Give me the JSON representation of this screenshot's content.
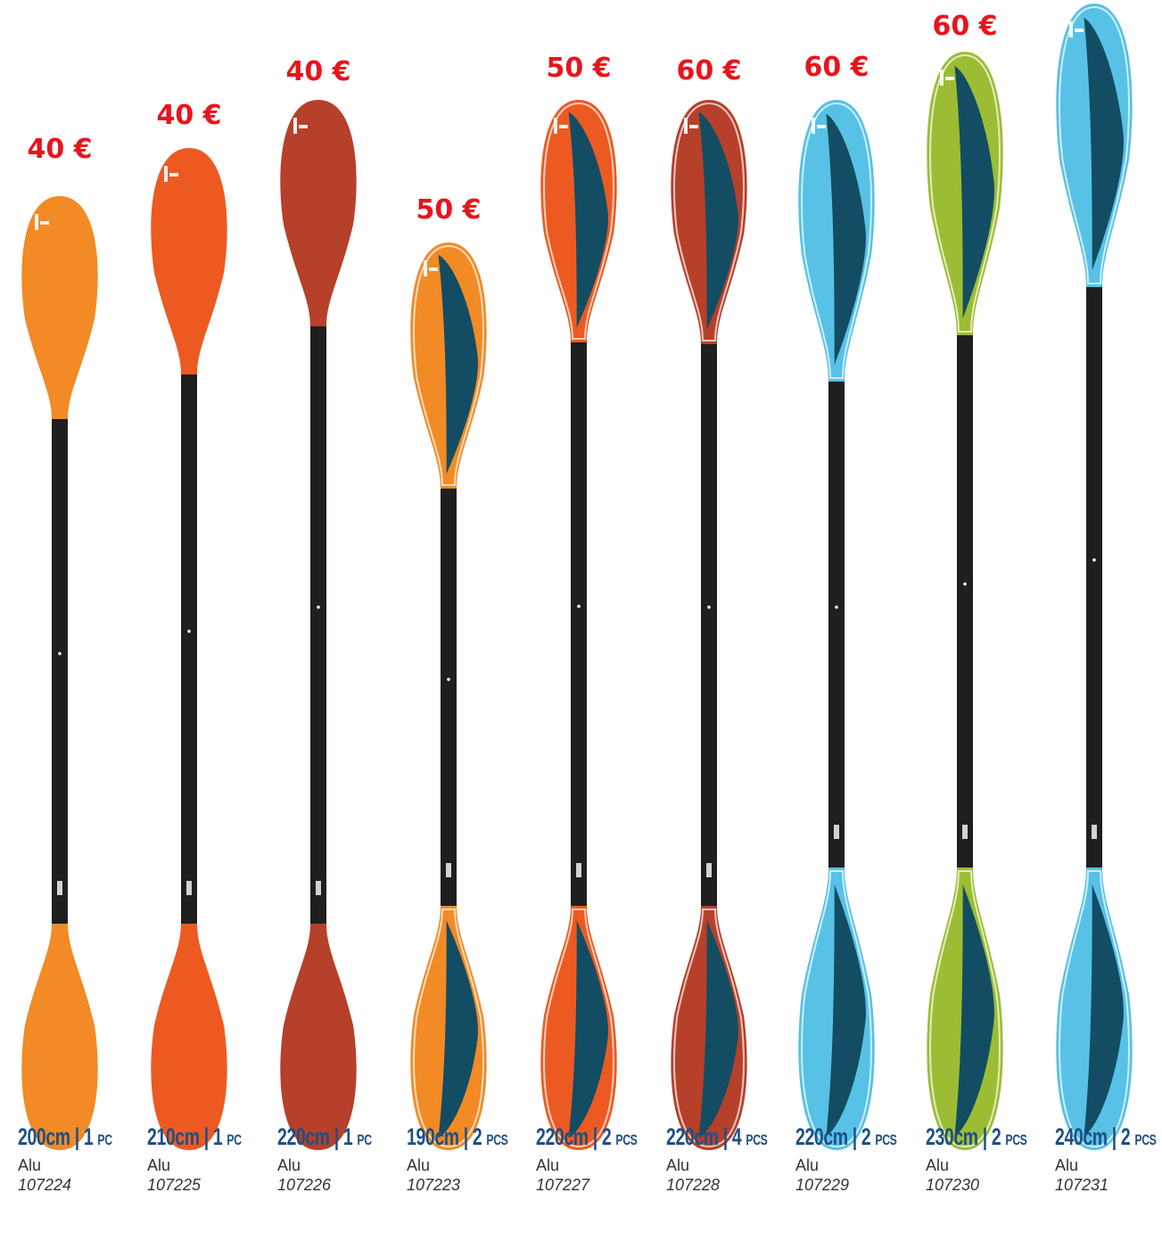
{
  "products": [
    {
      "price": "40 €",
      "length": "200cm",
      "pieces": "1 PC",
      "material": "Alu",
      "ref": "107224",
      "color": "#f28a25",
      "style": "solid",
      "accent": ""
    },
    {
      "price": "40 €",
      "length": "210cm",
      "pieces": "1 PC",
      "material": "Alu",
      "ref": "107225",
      "color": "#ec5a22",
      "style": "solid",
      "accent": ""
    },
    {
      "price": "40 €",
      "length": "220cm",
      "pieces": "1 PC",
      "material": "Alu",
      "ref": "107226",
      "color": "#b6402a",
      "style": "solid",
      "accent": ""
    },
    {
      "price": "50 €",
      "length": "190cm",
      "pieces": "2 PCS",
      "material": "Alu",
      "ref": "107223",
      "color": "#f28a25",
      "style": "insert",
      "accent": "#124d63"
    },
    {
      "price": "50 €",
      "length": "220cm",
      "pieces": "2 PCS",
      "material": "Alu",
      "ref": "107227",
      "color": "#ec5a22",
      "style": "insert",
      "accent": "#124d63"
    },
    {
      "price": "60 €",
      "length": "220cm",
      "pieces": "4 PCS",
      "material": "Alu",
      "ref": "107228",
      "color": "#b6402a",
      "style": "insert",
      "accent": "#124d63"
    },
    {
      "price": "60 €",
      "length": "220cm",
      "pieces": "2 PCS",
      "material": "Alu",
      "ref": "107229",
      "color": "#58c1e6",
      "style": "insert",
      "accent": "#124d63"
    },
    {
      "price": "60 €",
      "length": "230cm",
      "pieces": "2 PCS",
      "material": "Alu",
      "ref": "107230",
      "color": "#9cbd33",
      "style": "insert",
      "accent": "#124d63"
    },
    {
      "price": "",
      "length": "240cm",
      "pieces": "2 PCS",
      "material": "Alu",
      "ref": "107231",
      "color": "#58c1e6",
      "style": "insert",
      "accent": "#124d63"
    }
  ],
  "colors": {
    "price_red": "#e8141c",
    "spec_blue": "#1d4f86",
    "shaft_black": "#1f1f1f"
  },
  "icons": {
    "blade_logo": "brand-logo-icon"
  }
}
